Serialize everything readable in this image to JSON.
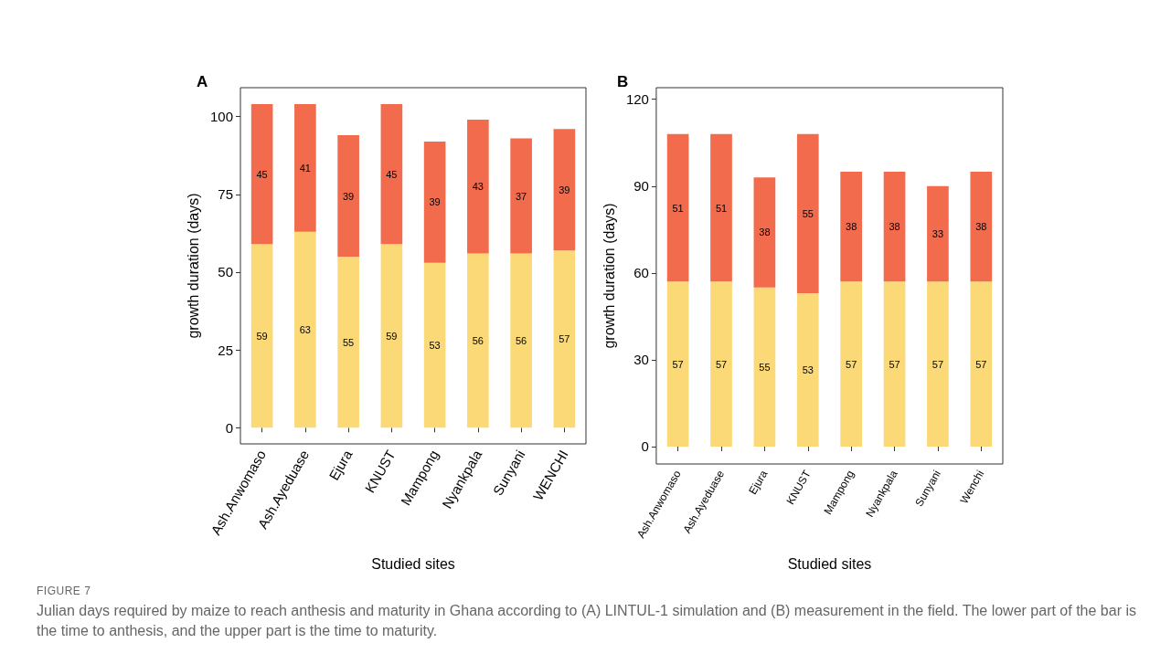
{
  "chart_data": [
    {
      "type": "bar",
      "title": "A",
      "xlabel": "Studied sites",
      "ylabel": "growth duration (days)",
      "stacked": true,
      "data_labels": true,
      "categories": [
        "Ash.Anwomaso",
        "Ash.Ayeduase",
        "Ejura",
        "KNUST",
        "Mampong",
        "Nyankpala",
        "Sunyani",
        "WENCHI"
      ],
      "series": [
        {
          "color": "#fcd977",
          "values": [
            59,
            63,
            55,
            59,
            53,
            56,
            56,
            57
          ]
        },
        {
          "color": "#f26b4d",
          "values": [
            45,
            41,
            39,
            45,
            39,
            43,
            37,
            39
          ]
        }
      ],
      "ylim": [
        -5.2,
        109.3
      ],
      "yticks": [
        0,
        25,
        50,
        75,
        100
      ],
      "annotations": [
        "FIGURE 7",
        "Julian days required by maize to reach anthesis and maturity in Ghana according to (A) LINTUL-1 simulation and (B) measurement in the field. The lower part of the bar is the time to anthesis, and the upper part is the time to maturity."
      ]
    },
    {
      "type": "bar",
      "title": "B",
      "xlabel": "Studied sites",
      "ylabel": "growth duration (days)",
      "stacked": true,
      "data_labels": true,
      "categories": [
        "Ash.Anwomaso",
        "Ash.Ayeduase",
        "Ejura",
        "KNUST",
        "Mampong",
        "Nyankpala",
        "Sunyani",
        "Wenchi"
      ],
      "series": [
        {
          "color": "#fcd977",
          "values": [
            57,
            57,
            55,
            53,
            57,
            57,
            57,
            57
          ]
        },
        {
          "color": "#f26b4d",
          "values": [
            51,
            51,
            38,
            55,
            38,
            38,
            33,
            38
          ]
        }
      ],
      "ylim": [
        -6,
        124
      ],
      "yticks": [
        0,
        30,
        60,
        90,
        120
      ]
    }
  ]
}
